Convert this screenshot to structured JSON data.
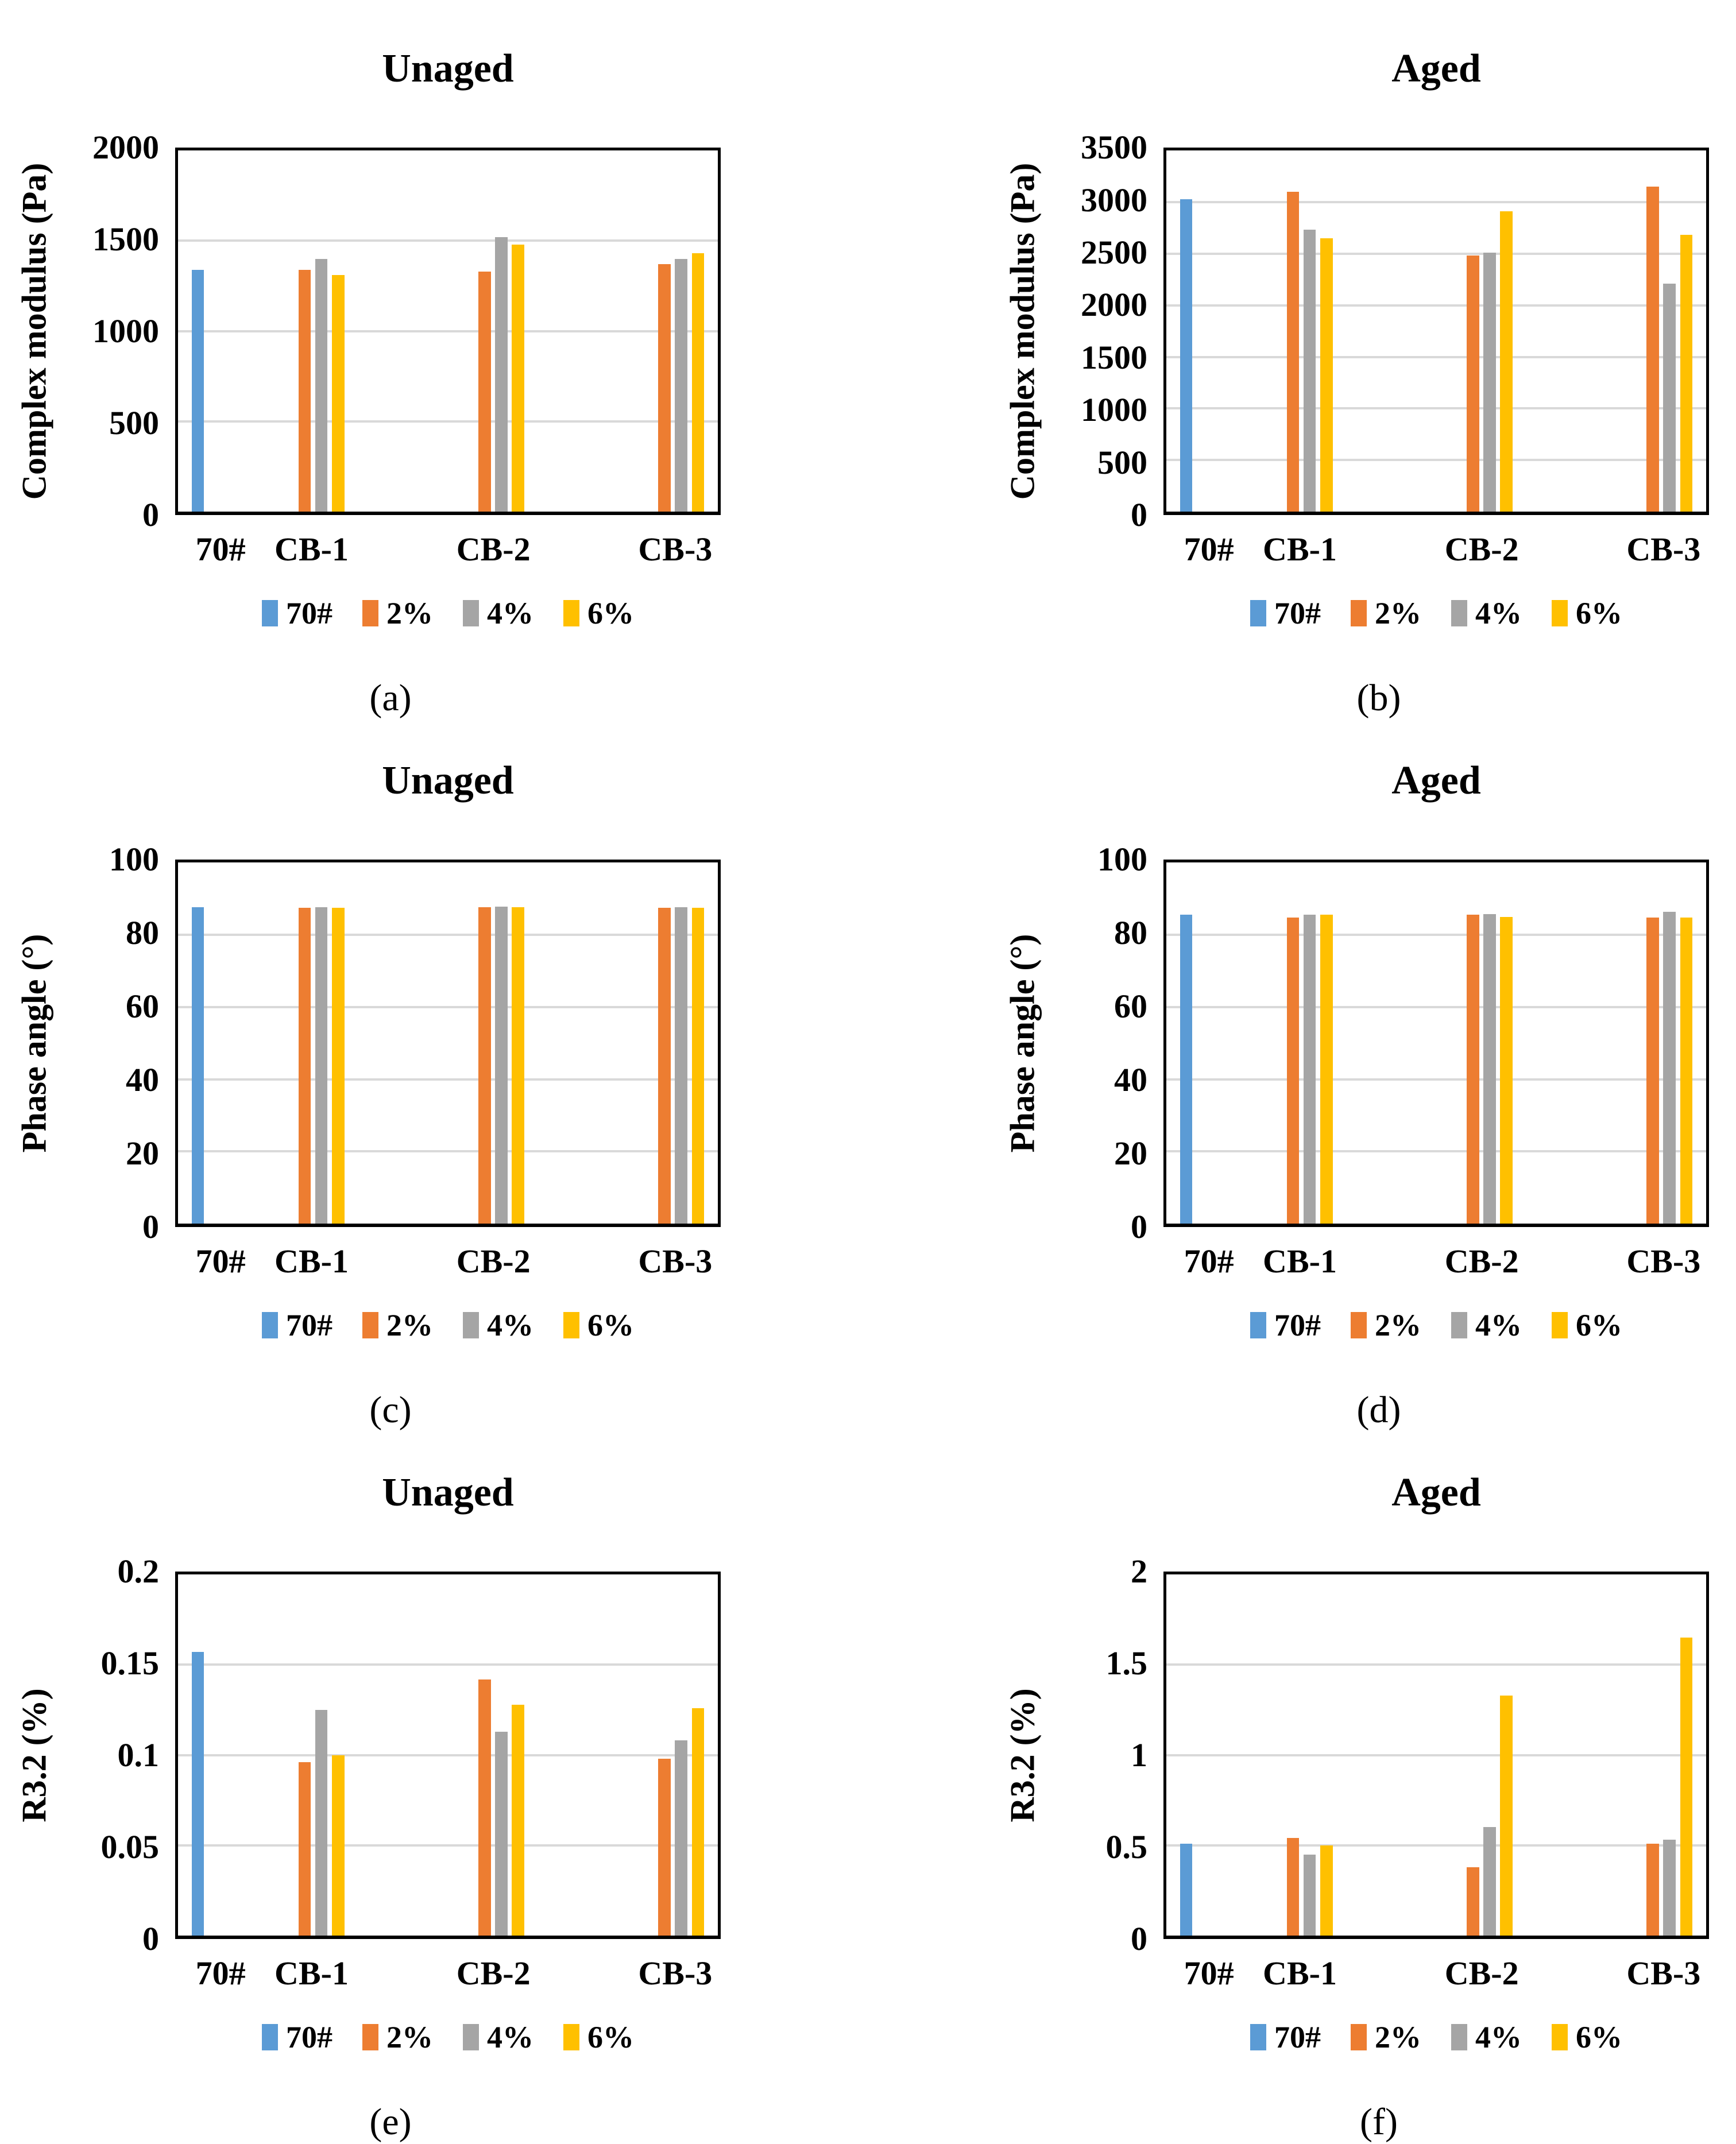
{
  "page": {
    "background": "#FFFFFF"
  },
  "palette": {
    "series_70": "#5B9BD5",
    "series_2pct": "#ED7D31",
    "series_4pct": "#A5A5A5",
    "series_6pct": "#FFC000",
    "gridline": "#D9D9D9",
    "plot_border": "#000000",
    "text": "#000000"
  },
  "chart_data": [
    {
      "id": "a",
      "caption": "(a)",
      "title": "Unaged",
      "type": "bar",
      "ylabel": "Complex modulus (Pa)",
      "xlabel": "",
      "ylim": [
        0,
        2000
      ],
      "yticks": [
        "2000",
        "1500",
        "1000",
        "500",
        "0"
      ],
      "grid": true,
      "legend_position": "bottom",
      "categories": [
        "70#",
        "CB-1",
        "CB-2",
        "CB-3"
      ],
      "series": [
        {
          "name": "70#",
          "color": "#5B9BD5",
          "values": [
            1340,
            null,
            null,
            null
          ]
        },
        {
          "name": "2%",
          "color": "#ED7D31",
          "values": [
            null,
            1340,
            1330,
            1370
          ]
        },
        {
          "name": "4%",
          "color": "#A5A5A5",
          "values": [
            null,
            1400,
            1520,
            1400
          ]
        },
        {
          "name": "6%",
          "color": "#FFC000",
          "values": [
            null,
            1310,
            1480,
            1430
          ]
        }
      ]
    },
    {
      "id": "b",
      "caption": "(b)",
      "title": "Aged",
      "type": "bar",
      "ylabel": "Complex modulus (Pa)",
      "xlabel": "",
      "ylim": [
        0,
        3500
      ],
      "yticks": [
        "3500",
        "3000",
        "2500",
        "2000",
        "1500",
        "1000",
        "500",
        "0"
      ],
      "grid": true,
      "legend_position": "bottom",
      "categories": [
        "70#",
        "CB-1",
        "CB-2",
        "CB-3"
      ],
      "series": [
        {
          "name": "70#",
          "color": "#5B9BD5",
          "values": [
            3030,
            null,
            null,
            null
          ]
        },
        {
          "name": "2%",
          "color": "#ED7D31",
          "values": [
            null,
            3100,
            2480,
            3150
          ]
        },
        {
          "name": "4%",
          "color": "#A5A5A5",
          "values": [
            null,
            2730,
            2510,
            2210
          ]
        },
        {
          "name": "6%",
          "color": "#FFC000",
          "values": [
            null,
            2650,
            2910,
            2680
          ]
        }
      ]
    },
    {
      "id": "c",
      "caption": "(c)",
      "title": "Unaged",
      "type": "bar",
      "ylabel": "Phase angle (°)",
      "xlabel": "",
      "ylim": [
        0,
        100
      ],
      "yticks": [
        "100",
        "80",
        "60",
        "40",
        "20",
        "0"
      ],
      "grid": true,
      "legend_position": "bottom",
      "categories": [
        "70#",
        "CB-1",
        "CB-2",
        "CB-3"
      ],
      "series": [
        {
          "name": "70#",
          "color": "#5B9BD5",
          "values": [
            87.6,
            null,
            null,
            null
          ]
        },
        {
          "name": "2%",
          "color": "#ED7D31",
          "values": [
            null,
            87.5,
            87.6,
            87.5
          ]
        },
        {
          "name": "4%",
          "color": "#A5A5A5",
          "values": [
            null,
            87.6,
            87.8,
            87.6
          ]
        },
        {
          "name": "6%",
          "color": "#FFC000",
          "values": [
            null,
            87.5,
            87.6,
            87.5
          ]
        }
      ]
    },
    {
      "id": "d",
      "caption": "(d)",
      "title": "Aged",
      "type": "bar",
      "ylabel": "Phase angle (°)",
      "xlabel": "",
      "ylim": [
        0,
        100
      ],
      "yticks": [
        "100",
        "80",
        "60",
        "40",
        "20",
        "0"
      ],
      "grid": true,
      "legend_position": "bottom",
      "categories": [
        "70#",
        "CB-1",
        "CB-2",
        "CB-3"
      ],
      "series": [
        {
          "name": "70#",
          "color": "#5B9BD5",
          "values": [
            85.5,
            null,
            null,
            null
          ]
        },
        {
          "name": "2%",
          "color": "#ED7D31",
          "values": [
            null,
            84.7,
            85.6,
            84.8
          ]
        },
        {
          "name": "4%",
          "color": "#A5A5A5",
          "values": [
            null,
            85.6,
            85.7,
            86.3
          ]
        },
        {
          "name": "6%",
          "color": "#FFC000",
          "values": [
            null,
            85.6,
            84.9,
            84.8
          ]
        }
      ]
    },
    {
      "id": "e",
      "caption": "(e)",
      "title": "Unaged",
      "type": "bar",
      "ylabel": "R3.2 (%)",
      "xlabel": "",
      "ylim": [
        0,
        0.2
      ],
      "yticks": [
        "0.2",
        "0.15",
        "0.1",
        "0.05",
        "0"
      ],
      "grid": true,
      "legend_position": "bottom",
      "categories": [
        "70#",
        "CB-1",
        "CB-2",
        "CB-3"
      ],
      "series": [
        {
          "name": "70#",
          "color": "#5B9BD5",
          "values": [
            0.157,
            null,
            null,
            null
          ]
        },
        {
          "name": "2%",
          "color": "#ED7D31",
          "values": [
            null,
            0.096,
            0.142,
            0.098
          ]
        },
        {
          "name": "4%",
          "color": "#A5A5A5",
          "values": [
            null,
            0.125,
            0.113,
            0.108
          ]
        },
        {
          "name": "6%",
          "color": "#FFC000",
          "values": [
            null,
            0.1,
            0.128,
            0.126
          ]
        }
      ]
    },
    {
      "id": "f",
      "caption": "(f)",
      "title": "Aged",
      "type": "bar",
      "ylabel": "R3.2 (%)",
      "xlabel": "",
      "ylim": [
        0,
        2
      ],
      "yticks": [
        "2",
        "1.5",
        "1",
        "0.5",
        "0"
      ],
      "grid": true,
      "legend_position": "bottom",
      "categories": [
        "70#",
        "CB-1",
        "CB-2",
        "CB-3"
      ],
      "series": [
        {
          "name": "70#",
          "color": "#5B9BD5",
          "values": [
            0.51,
            null,
            null,
            null
          ]
        },
        {
          "name": "2%",
          "color": "#ED7D31",
          "values": [
            null,
            0.54,
            0.38,
            0.51
          ]
        },
        {
          "name": "4%",
          "color": "#A5A5A5",
          "values": [
            null,
            0.45,
            0.6,
            0.53
          ]
        },
        {
          "name": "6%",
          "color": "#FFC000",
          "values": [
            null,
            0.5,
            1.33,
            1.65
          ]
        }
      ]
    }
  ]
}
